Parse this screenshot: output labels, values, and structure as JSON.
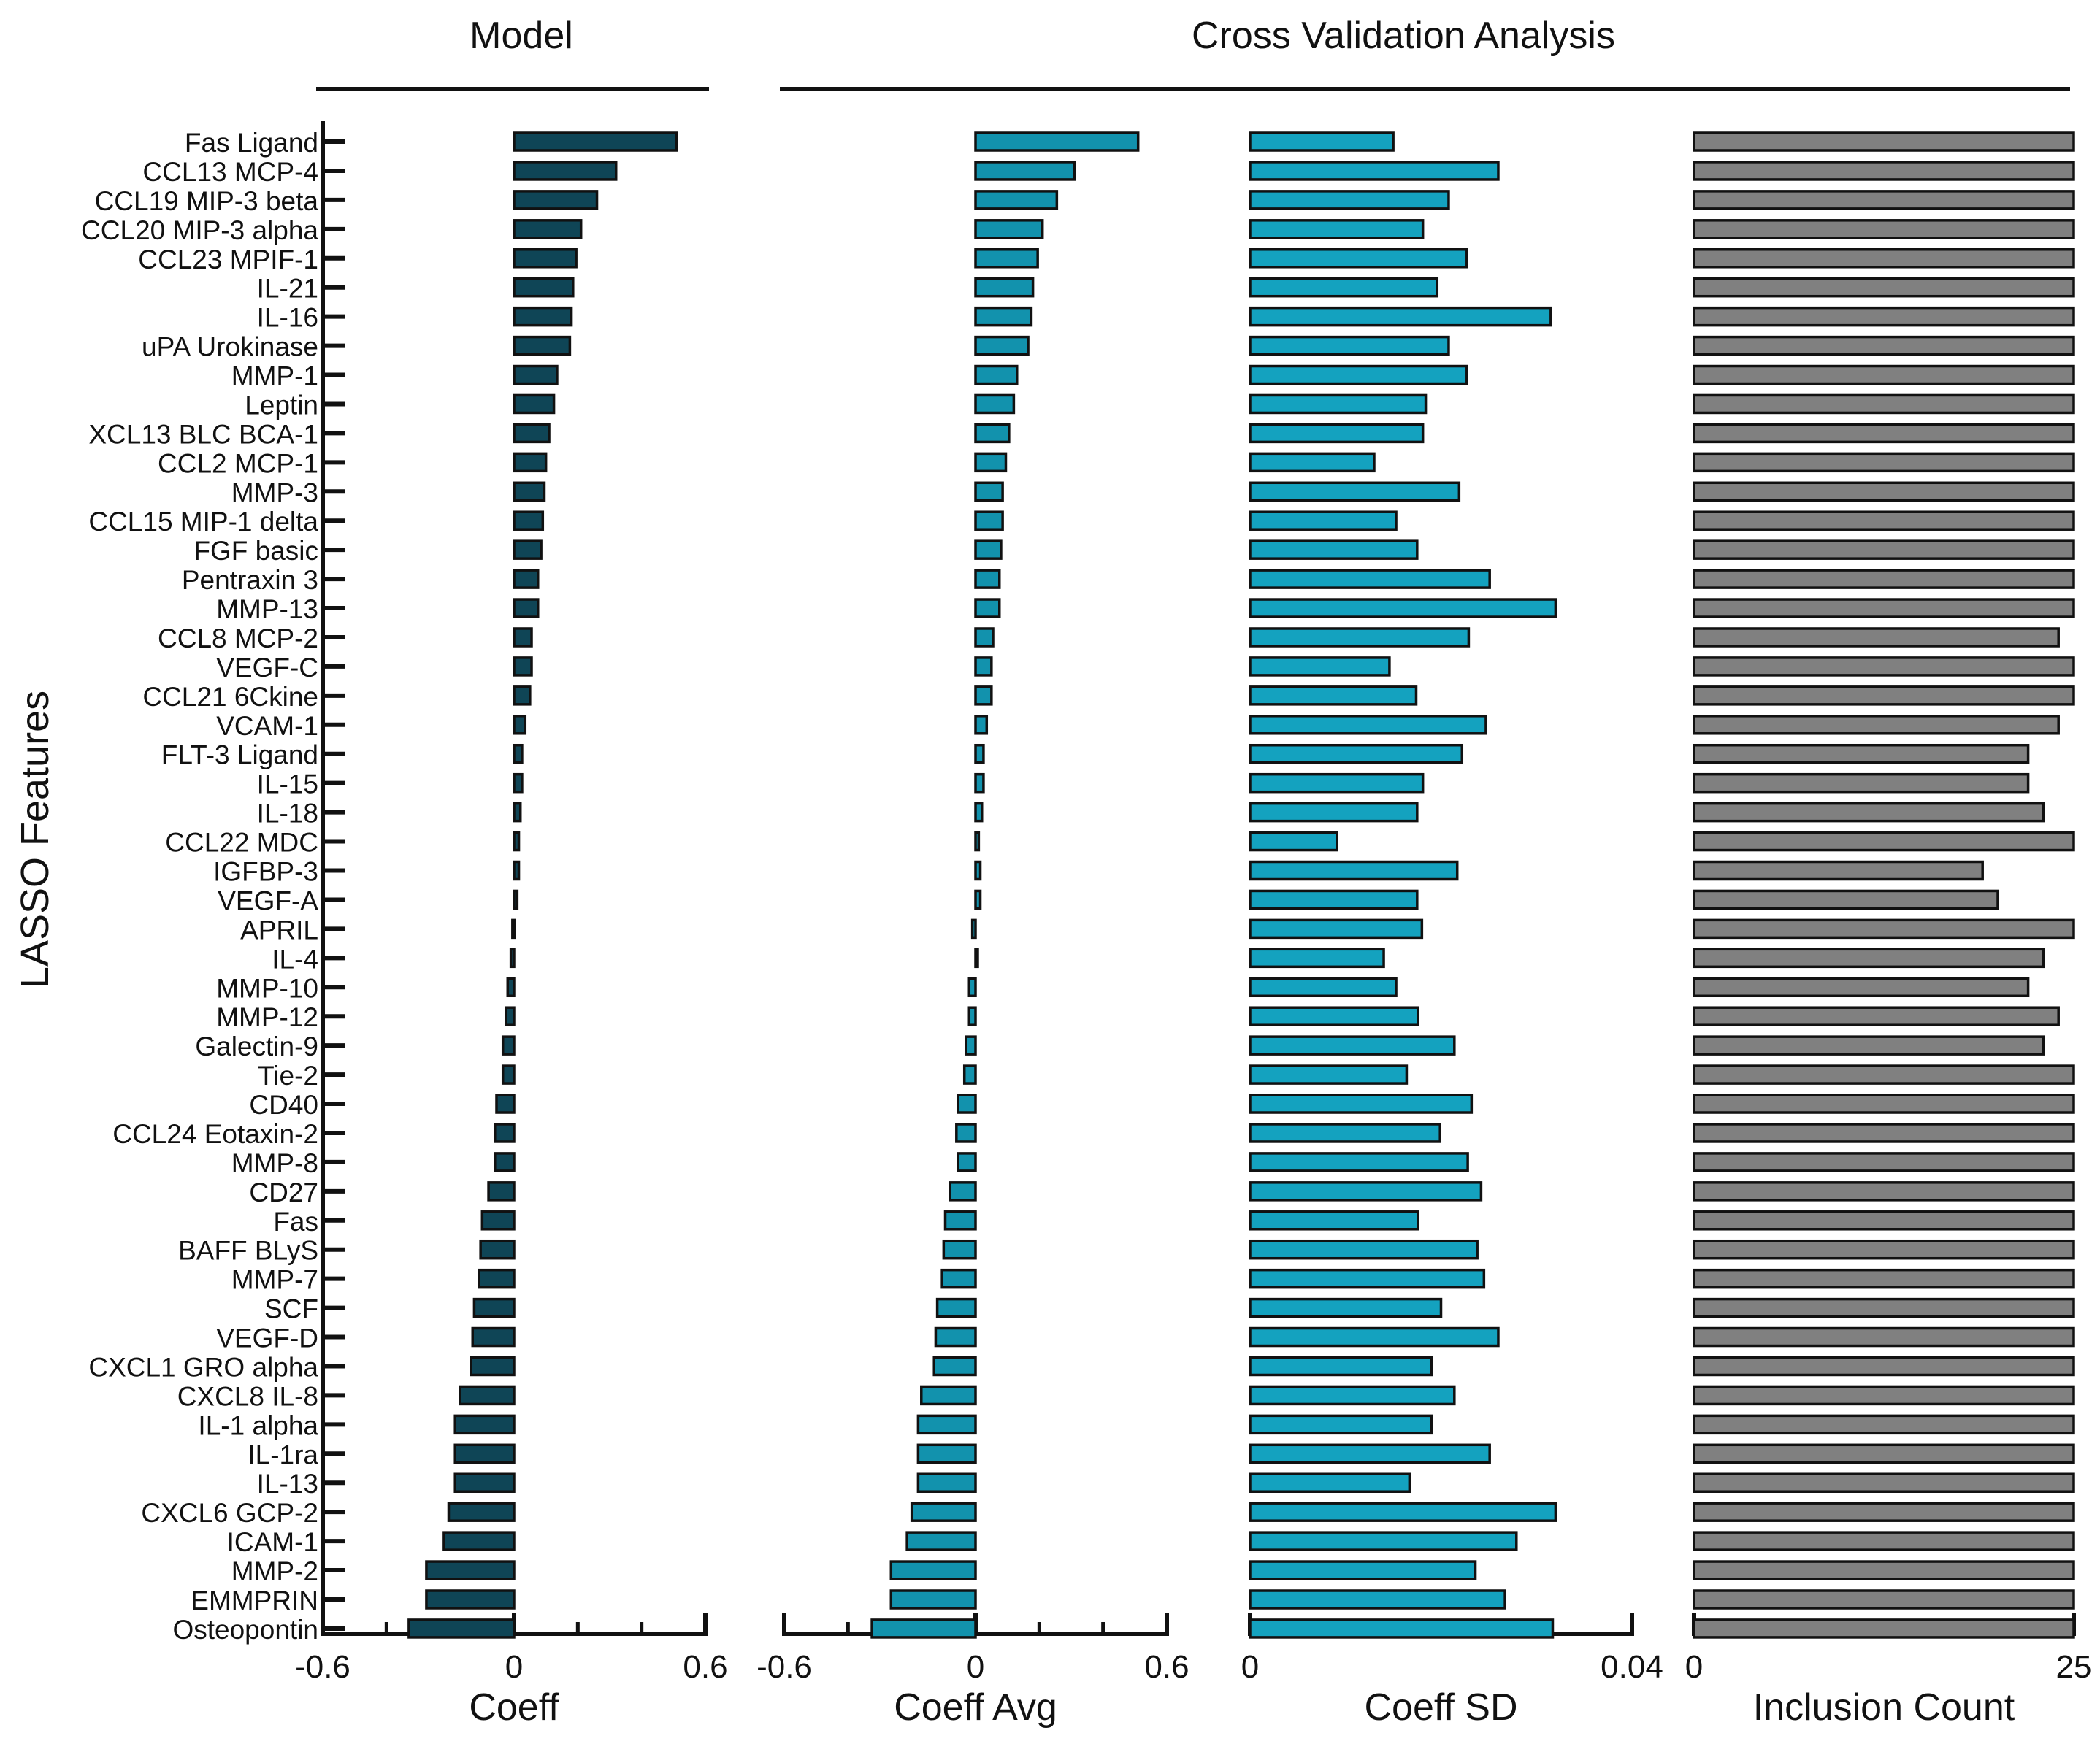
{
  "header": {
    "model_title": "Model",
    "cv_title": "Cross Validation Analysis"
  },
  "y_axis_label": "LASSO Features",
  "colors": {
    "model": "#0f4556",
    "cv_avg": "#1292ad",
    "cv_sd": "#14a2bf",
    "inclusion": "#808080",
    "ink": "#111111"
  },
  "chart_data": {
    "type": "bar",
    "orientation": "horizontal",
    "features": [
      "Fas Ligand",
      "CCL13 MCP-4",
      "CCL19 MIP-3 beta",
      "CCL20 MIP-3 alpha",
      "CCL23 MPIF-1",
      "IL-21",
      "IL-16",
      "uPA Urokinase",
      "MMP-1",
      "Leptin",
      "XCL13 BLC BCA-1",
      "CCL2 MCP-1",
      "MMP-3",
      "CCL15 MIP-1 delta",
      "FGF basic",
      "Pentraxin 3",
      "MMP-13",
      "CCL8 MCP-2",
      "VEGF-C",
      "CCL21 6Ckine",
      "VCAM-1",
      "FLT-3 Ligand",
      "IL-15",
      "IL-18",
      "CCL22 MDC",
      "IGFBP-3",
      "VEGF-A",
      "APRIL",
      "IL-4",
      "MMP-10",
      "MMP-12",
      "Galectin-9",
      "Tie-2",
      "CD40",
      "CCL24 Eotaxin-2",
      "MMP-8",
      "CD27",
      "Fas",
      "BAFF BLyS",
      "MMP-7",
      "SCF",
      "VEGF-D",
      "CXCL1 GRO alpha",
      "CXCL8 IL-8",
      "IL-1 alpha",
      "IL-1ra",
      "IL-13",
      "CXCL6 GCP-2",
      "ICAM-1",
      "MMP-2",
      "EMMPRIN",
      "Osteopontin"
    ],
    "panels": [
      {
        "name": "Model Coeff",
        "xlabel": "Coeff",
        "xlim": [
          -0.6,
          0.6
        ],
        "ticks": [
          -0.6,
          0,
          0.6
        ],
        "tick_labels": [
          "-0.6",
          "0",
          "0.6"
        ],
        "minor_ticks": [
          -0.4,
          -0.2,
          0.2,
          0.4
        ],
        "values": [
          0.51,
          0.32,
          0.26,
          0.21,
          0.195,
          0.185,
          0.18,
          0.175,
          0.135,
          0.125,
          0.11,
          0.1,
          0.095,
          0.09,
          0.085,
          0.075,
          0.075,
          0.055,
          0.055,
          0.05,
          0.035,
          0.025,
          0.025,
          0.02,
          0.015,
          0.015,
          0.01,
          -0.005,
          -0.01,
          -0.02,
          -0.025,
          -0.035,
          -0.035,
          -0.055,
          -0.06,
          -0.06,
          -0.08,
          -0.1,
          -0.105,
          -0.11,
          -0.125,
          -0.13,
          -0.135,
          -0.17,
          -0.185,
          -0.185,
          -0.185,
          -0.205,
          -0.22,
          -0.275,
          -0.275,
          -0.33
        ]
      },
      {
        "name": "CV Coeff Avg",
        "xlabel": "Coeff Avg",
        "xlim": [
          -0.6,
          0.6
        ],
        "ticks": [
          -0.6,
          0,
          0.6
        ],
        "tick_labels": [
          "-0.6",
          "0",
          "0.6"
        ],
        "minor_ticks": [
          -0.4,
          -0.2,
          0.2,
          0.4
        ],
        "values": [
          0.51,
          0.31,
          0.255,
          0.21,
          0.195,
          0.18,
          0.175,
          0.165,
          0.13,
          0.12,
          0.105,
          0.095,
          0.085,
          0.085,
          0.08,
          0.075,
          0.075,
          0.055,
          0.05,
          0.05,
          0.035,
          0.025,
          0.025,
          0.02,
          0.01,
          0.015,
          0.015,
          -0.01,
          0.0,
          -0.02,
          -0.02,
          -0.03,
          -0.035,
          -0.055,
          -0.06,
          -0.055,
          -0.08,
          -0.095,
          -0.1,
          -0.105,
          -0.12,
          -0.125,
          -0.13,
          -0.17,
          -0.18,
          -0.18,
          -0.18,
          -0.2,
          -0.215,
          -0.265,
          -0.265,
          -0.325
        ]
      },
      {
        "name": "CV Coeff SD",
        "xlabel": "Coeff SD",
        "xlim": [
          0,
          0.04
        ],
        "ticks": [
          0,
          0.04
        ],
        "tick_labels": [
          "0",
          "0.04"
        ],
        "minor_ticks": [
          0.02
        ],
        "values": [
          0.015,
          0.026,
          0.0208,
          0.0181,
          0.0227,
          0.0196,
          0.0315,
          0.0208,
          0.0227,
          0.0184,
          0.0181,
          0.013,
          0.0219,
          0.0153,
          0.0175,
          0.0251,
          0.032,
          0.0229,
          0.0146,
          0.0174,
          0.0247,
          0.0222,
          0.0181,
          0.0175,
          0.0091,
          0.0217,
          0.0175,
          0.018,
          0.014,
          0.0153,
          0.0176,
          0.0214,
          0.0164,
          0.0232,
          0.0199,
          0.0228,
          0.0242,
          0.0176,
          0.0238,
          0.0245,
          0.02,
          0.026,
          0.019,
          0.0214,
          0.019,
          0.0251,
          0.0167,
          0.032,
          0.0279,
          0.0236,
          0.0267,
          0.0317
        ]
      },
      {
        "name": "Inclusion Count",
        "xlabel": "Inclusion  Count",
        "xlim": [
          0,
          25
        ],
        "ticks": [
          0,
          25
        ],
        "tick_labels": [
          "0",
          "25"
        ],
        "minor_ticks": [
          5,
          10,
          15,
          20
        ],
        "values": [
          25,
          25,
          25,
          25,
          25,
          25,
          25,
          25,
          25,
          25,
          25,
          25,
          25,
          25,
          25,
          25,
          25,
          24,
          25,
          25,
          24,
          22,
          22,
          23,
          25,
          19,
          20,
          25,
          23,
          22,
          24,
          23,
          25,
          25,
          25,
          25,
          25,
          25,
          25,
          25,
          25,
          25,
          25,
          25,
          25,
          25,
          25,
          25,
          25,
          25,
          25,
          25
        ]
      }
    ]
  }
}
